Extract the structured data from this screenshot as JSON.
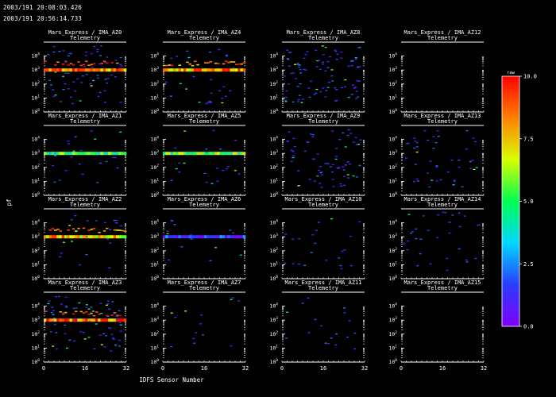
{
  "header": {
    "time_start": "2003/191 20:08:03.426",
    "time_end": "2003/191 20:56:14.733"
  },
  "chart_data": {
    "type": "heatmap",
    "xlabel": "IDFS Sensor Number",
    "ylabel": "pf",
    "x_ticks": [
      "0",
      "16",
      "32"
    ],
    "xlim": [
      0,
      32
    ],
    "y_scale": "log",
    "ylim": [
      1,
      100000
    ],
    "y_tick_exponents": [
      "0",
      "1",
      "2",
      "3",
      "4"
    ],
    "colorbar": {
      "title": "raw",
      "range": [
        0.0,
        10.0
      ],
      "tick_labels": [
        "0.0",
        "2.5",
        "5.0",
        "7.5",
        "10.0"
      ],
      "colors": [
        "#7f00ff",
        "#2a3cff",
        "#00d8ff",
        "#00ff50",
        "#d8ff00",
        "#ff8000",
        "#ff0000"
      ]
    },
    "panels": [
      {
        "title": "Mars_Express / IMA_AZ0",
        "subtitle": "Telemetry",
        "band_level": 1000,
        "band_intensity": 9.5,
        "scatter_density": 0.35
      },
      {
        "title": "Mars_Express / IMA_AZ4",
        "subtitle": "Telemetry",
        "band_level": 1000,
        "band_intensity": 9.0,
        "scatter_density": 0.15
      },
      {
        "title": "Mars_Express / IMA_AZ8",
        "subtitle": "Telemetry",
        "band_level": null,
        "band_intensity": 0,
        "scatter_density": 0.55
      },
      {
        "title": "Mars_Express / IMA_AZ12",
        "subtitle": "Telemetry",
        "band_level": null,
        "band_intensity": 0,
        "scatter_density": 0.0
      },
      {
        "title": "Mars_Express / IMA_AZ1",
        "subtitle": "Telemetry",
        "band_level": 1000,
        "band_intensity": 6.0,
        "scatter_density": 0.12
      },
      {
        "title": "Mars_Express / IMA_AZ5",
        "subtitle": "Telemetry",
        "band_level": 1000,
        "band_intensity": 6.5,
        "scatter_density": 0.12
      },
      {
        "title": "Mars_Express / IMA_AZ9",
        "subtitle": "Telemetry",
        "band_level": null,
        "band_intensity": 0,
        "scatter_density": 0.4
      },
      {
        "title": "Mars_Express / IMA_AZ13",
        "subtitle": "Telemetry",
        "band_level": null,
        "band_intensity": 0,
        "scatter_density": 0.25
      },
      {
        "title": "Mars_Express / IMA_AZ2",
        "subtitle": "Telemetry",
        "band_level": 1000,
        "band_intensity": 8.5,
        "scatter_density": 0.12
      },
      {
        "title": "Mars_Express / IMA_AZ6",
        "subtitle": "Telemetry",
        "band_level": 1000,
        "band_intensity": 2.5,
        "scatter_density": 0.08
      },
      {
        "title": "Mars_Express / IMA_AZ10",
        "subtitle": "Telemetry",
        "band_level": null,
        "band_intensity": 0,
        "scatter_density": 0.12
      },
      {
        "title": "Mars_Express / IMA_AZ14",
        "subtitle": "Telemetry",
        "band_level": null,
        "band_intensity": 0,
        "scatter_density": 0.18
      },
      {
        "title": "Mars_Express / IMA_AZ3",
        "subtitle": "Telemetry",
        "band_level": 1000,
        "band_intensity": 9.5,
        "scatter_density": 0.4
      },
      {
        "title": "Mars_Express / IMA_AZ7",
        "subtitle": "Telemetry",
        "band_level": null,
        "band_intensity": 0,
        "scatter_density": 0.08
      },
      {
        "title": "Mars_Express / IMA_AZ11",
        "subtitle": "Telemetry",
        "band_level": null,
        "band_intensity": 0,
        "scatter_density": 0.1
      },
      {
        "title": "Mars_Express / IMA_AZ15",
        "subtitle": "Telemetry",
        "band_level": null,
        "band_intensity": 0,
        "scatter_density": 0.0
      }
    ]
  }
}
